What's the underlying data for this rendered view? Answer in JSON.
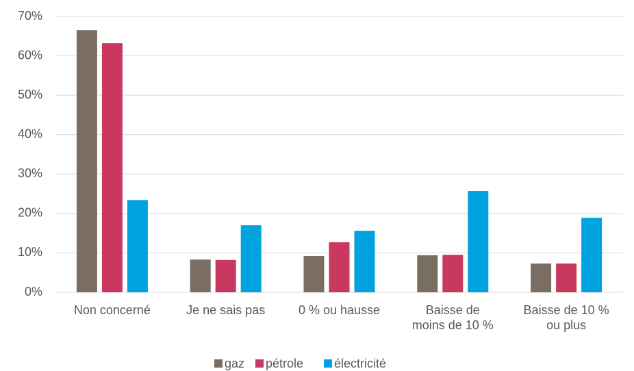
{
  "chart_data": {
    "type": "bar",
    "categories": [
      "Non concerné",
      "Je ne sais pas",
      "0 % ou hausse",
      "Baisse de\nmoins de 10 %",
      "Baisse de 10 %\nou plus"
    ],
    "series": [
      {
        "name": "gaz",
        "color": "#7a6e63",
        "values": [
          66.5,
          8.3,
          9.2,
          9.4,
          7.3
        ]
      },
      {
        "name": "pétrole",
        "color": "#c8385f",
        "values": [
          63.2,
          8.2,
          12.7,
          9.5,
          7.3
        ]
      },
      {
        "name": "électricité",
        "color": "#00a2e0",
        "values": [
          23.4,
          17.0,
          15.6,
          25.7,
          18.9
        ]
      }
    ],
    "ylim": [
      0,
      70
    ],
    "yticks": [
      {
        "value": 0,
        "label": "0%"
      },
      {
        "value": 10,
        "label": "10%"
      },
      {
        "value": 20,
        "label": "20%"
      },
      {
        "value": 30,
        "label": "30%"
      },
      {
        "value": 40,
        "label": "40%"
      },
      {
        "value": 50,
        "label": "50%"
      },
      {
        "value": 60,
        "label": "60%"
      },
      {
        "value": 70,
        "label": "70%"
      }
    ],
    "grid": true,
    "legend": "bottom"
  }
}
